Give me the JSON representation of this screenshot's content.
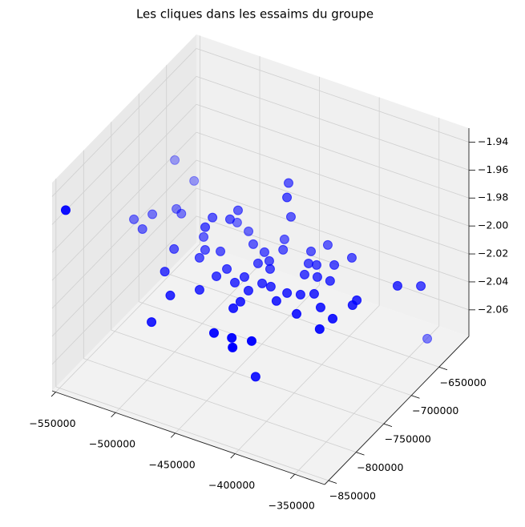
{
  "chart_data": {
    "type": "scatter3d",
    "title": "Les cliques dans les essaims du groupe",
    "color": "blue",
    "grid": true,
    "xlim": [
      -553000,
      -325000
    ],
    "ylim": [
      -857000,
      -596000
    ],
    "zlim": [
      -2.079,
      -1.93
    ],
    "xticks": [
      {
        "value": -550000,
        "label": "−550000"
      },
      {
        "value": -500000,
        "label": "−500000"
      },
      {
        "value": -450000,
        "label": "−450000"
      },
      {
        "value": -400000,
        "label": "−400000"
      },
      {
        "value": -350000,
        "label": "−350000"
      }
    ],
    "yticks": [
      {
        "value": -850000,
        "label": "−850000"
      },
      {
        "value": -800000,
        "label": "−800000"
      },
      {
        "value": -750000,
        "label": "−750000"
      },
      {
        "value": -700000,
        "label": "−700000"
      },
      {
        "value": -650000,
        "label": "−650000"
      }
    ],
    "zticks": [
      {
        "value": -2.06,
        "label": "−2.06"
      },
      {
        "value": -2.04,
        "label": "−2.04"
      },
      {
        "value": -2.02,
        "label": "−2.02"
      },
      {
        "value": -2.0,
        "label": "−2.00"
      },
      {
        "value": -1.98,
        "label": "−1.98"
      },
      {
        "value": -1.96,
        "label": "−1.96"
      },
      {
        "value": -1.94,
        "label": "−1.94"
      }
    ],
    "x": [
      -543000,
      -547000,
      -529000,
      -543300,
      -534800,
      -532000,
      -523000,
      -517000,
      -500000,
      -492000,
      -474000,
      -475500,
      -423700,
      -409600,
      -403200,
      -395200,
      -395700,
      -442900,
      -435100,
      -433600,
      -470700,
      -470300,
      -482300,
      -481000,
      -488800,
      -469500,
      -480000,
      -478700,
      -454700,
      -456800,
      -459100,
      -476600,
      -464100,
      -453300,
      -441400,
      -433000,
      -438600,
      -427600,
      -438800,
      -441400,
      -428000,
      -423800,
      -416400,
      -426200,
      -426700,
      -436700,
      -431200,
      -402300,
      -404100,
      -412700,
      -406100,
      -406900,
      -400900,
      -389800,
      -393100,
      -402600,
      -382700,
      -392900,
      -384800,
      -372500,
      -383600,
      -359900,
      -358100,
      -353900,
      -383200,
      -354200,
      -337500,
      -328700,
      -336900
    ],
    "y": [
      -854000,
      -648000,
      -652000,
      -730000,
      -715000,
      -739000,
      -697000,
      -701000,
      -751000,
      -785000,
      -814000,
      -844700,
      -843700,
      -842000,
      -854400,
      -837200,
      -829000,
      -667300,
      -687000,
      -683100,
      -698600,
      -714000,
      -719700,
      -735700,
      -721700,
      -733000,
      -738000,
      -751000,
      -753400,
      -767700,
      -793300,
      -687400,
      -693900,
      -708700,
      -714100,
      -723600,
      -731800,
      -733800,
      -756000,
      -767700,
      -772100,
      -756400,
      -756700,
      -790500,
      -802300,
      -688100,
      -702500,
      -757800,
      -773100,
      -692000,
      -675900,
      -709000,
      -707400,
      -699400,
      -722900,
      -725500,
      -722300,
      -753800,
      -746600,
      -761600,
      -781000,
      -790500,
      -770900,
      -744000,
      -681900,
      -735700,
      -698100,
      -674900,
      -645600
    ],
    "z": [
      -1.948,
      -1.997,
      -2.005,
      -2.005,
      -2.005,
      -2.005,
      -2.005,
      -2.005,
      -2.005,
      -2.005,
      -2.005,
      -2.012,
      -2.005,
      -2.005,
      -2.005,
      -2.005,
      -2.034,
      -1.975,
      -1.975,
      -1.99,
      -1.99,
      -1.99,
      -1.99,
      -1.99,
      -2.005,
      -2.005,
      -2.005,
      -2.005,
      -2.005,
      -2.005,
      -2.005,
      -2.005,
      -2.005,
      -2.005,
      -2.005,
      -2.005,
      -2.005,
      -2.005,
      -2.005,
      -2.005,
      -2.005,
      -2.005,
      -2.005,
      -2.005,
      -2.005,
      -2.005,
      -2.005,
      -2.005,
      -2.005,
      -2.005,
      -2.005,
      -2.005,
      -2.005,
      -2.005,
      -2.005,
      -2.005,
      -2.005,
      -2.005,
      -2.005,
      -2.005,
      -2.005,
      -2.005,
      -2.005,
      -2.005,
      -2.005,
      -2.005,
      -2.005,
      -2.012,
      -2.064
    ]
  }
}
